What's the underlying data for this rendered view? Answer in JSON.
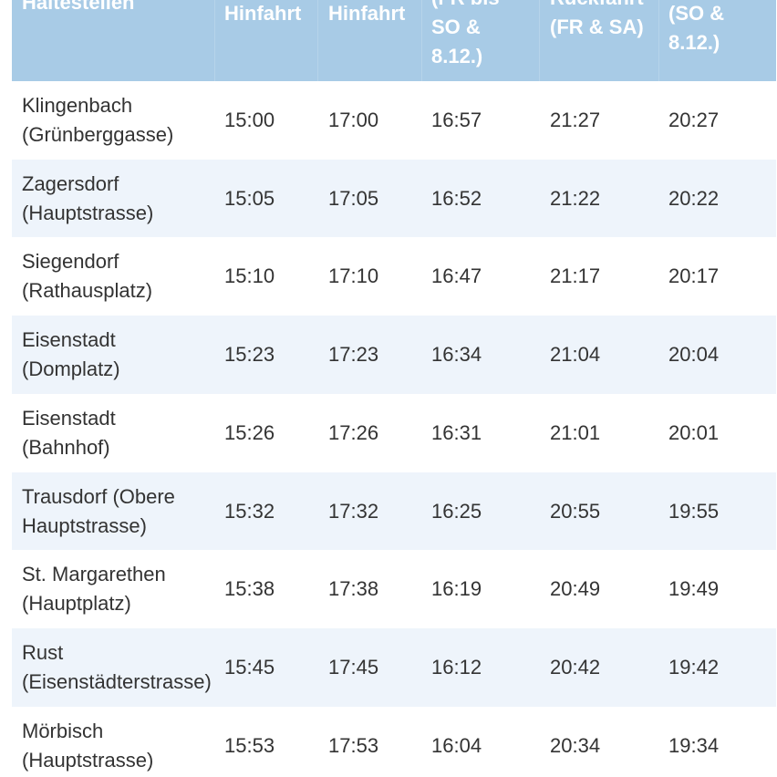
{
  "table": {
    "header": [
      [
        "Haltestellen"
      ],
      [
        "Hinfahrt"
      ],
      [
        "Hinfahrt"
      ],
      [
        "(FR bis",
        "SO &",
        "8.12.)"
      ],
      [
        "Rückfahrt",
        "(FR & SA)"
      ],
      [
        "(SO &",
        "8.12.)"
      ]
    ],
    "rows": [
      [
        "Klingenbach (Grünberggasse)",
        "15:00",
        "17:00",
        "16:57",
        "21:27",
        "20:27"
      ],
      [
        "Zagersdorf (Hauptstrasse)",
        "15:05",
        "17:05",
        "16:52",
        "21:22",
        "20:22"
      ],
      [
        "Siegendorf (Rathausplatz)",
        "15:10",
        "17:10",
        "16:47",
        "21:17",
        "20:17"
      ],
      [
        "Eisenstadt (Domplatz)",
        "15:23",
        "17:23",
        "16:34",
        "21:04",
        "20:04"
      ],
      [
        "Eisenstadt (Bahnhof)",
        "15:26",
        "17:26",
        "16:31",
        "21:01",
        "20:01"
      ],
      [
        "Trausdorf (Obere Hauptstrasse)",
        "15:32",
        "17:32",
        "16:25",
        "20:55",
        "19:55"
      ],
      [
        "St. Margarethen (Hauptplatz)",
        "15:38",
        "17:38",
        "16:19",
        "20:49",
        "19:49"
      ],
      [
        "Rust (Eisenstädterstrasse)",
        "15:45",
        "17:45",
        "16:12",
        "20:42",
        "19:42"
      ],
      [
        "Mörbisch (Hauptstrasse)",
        "15:53",
        "17:53",
        "16:04",
        "20:34",
        "19:34"
      ]
    ]
  }
}
